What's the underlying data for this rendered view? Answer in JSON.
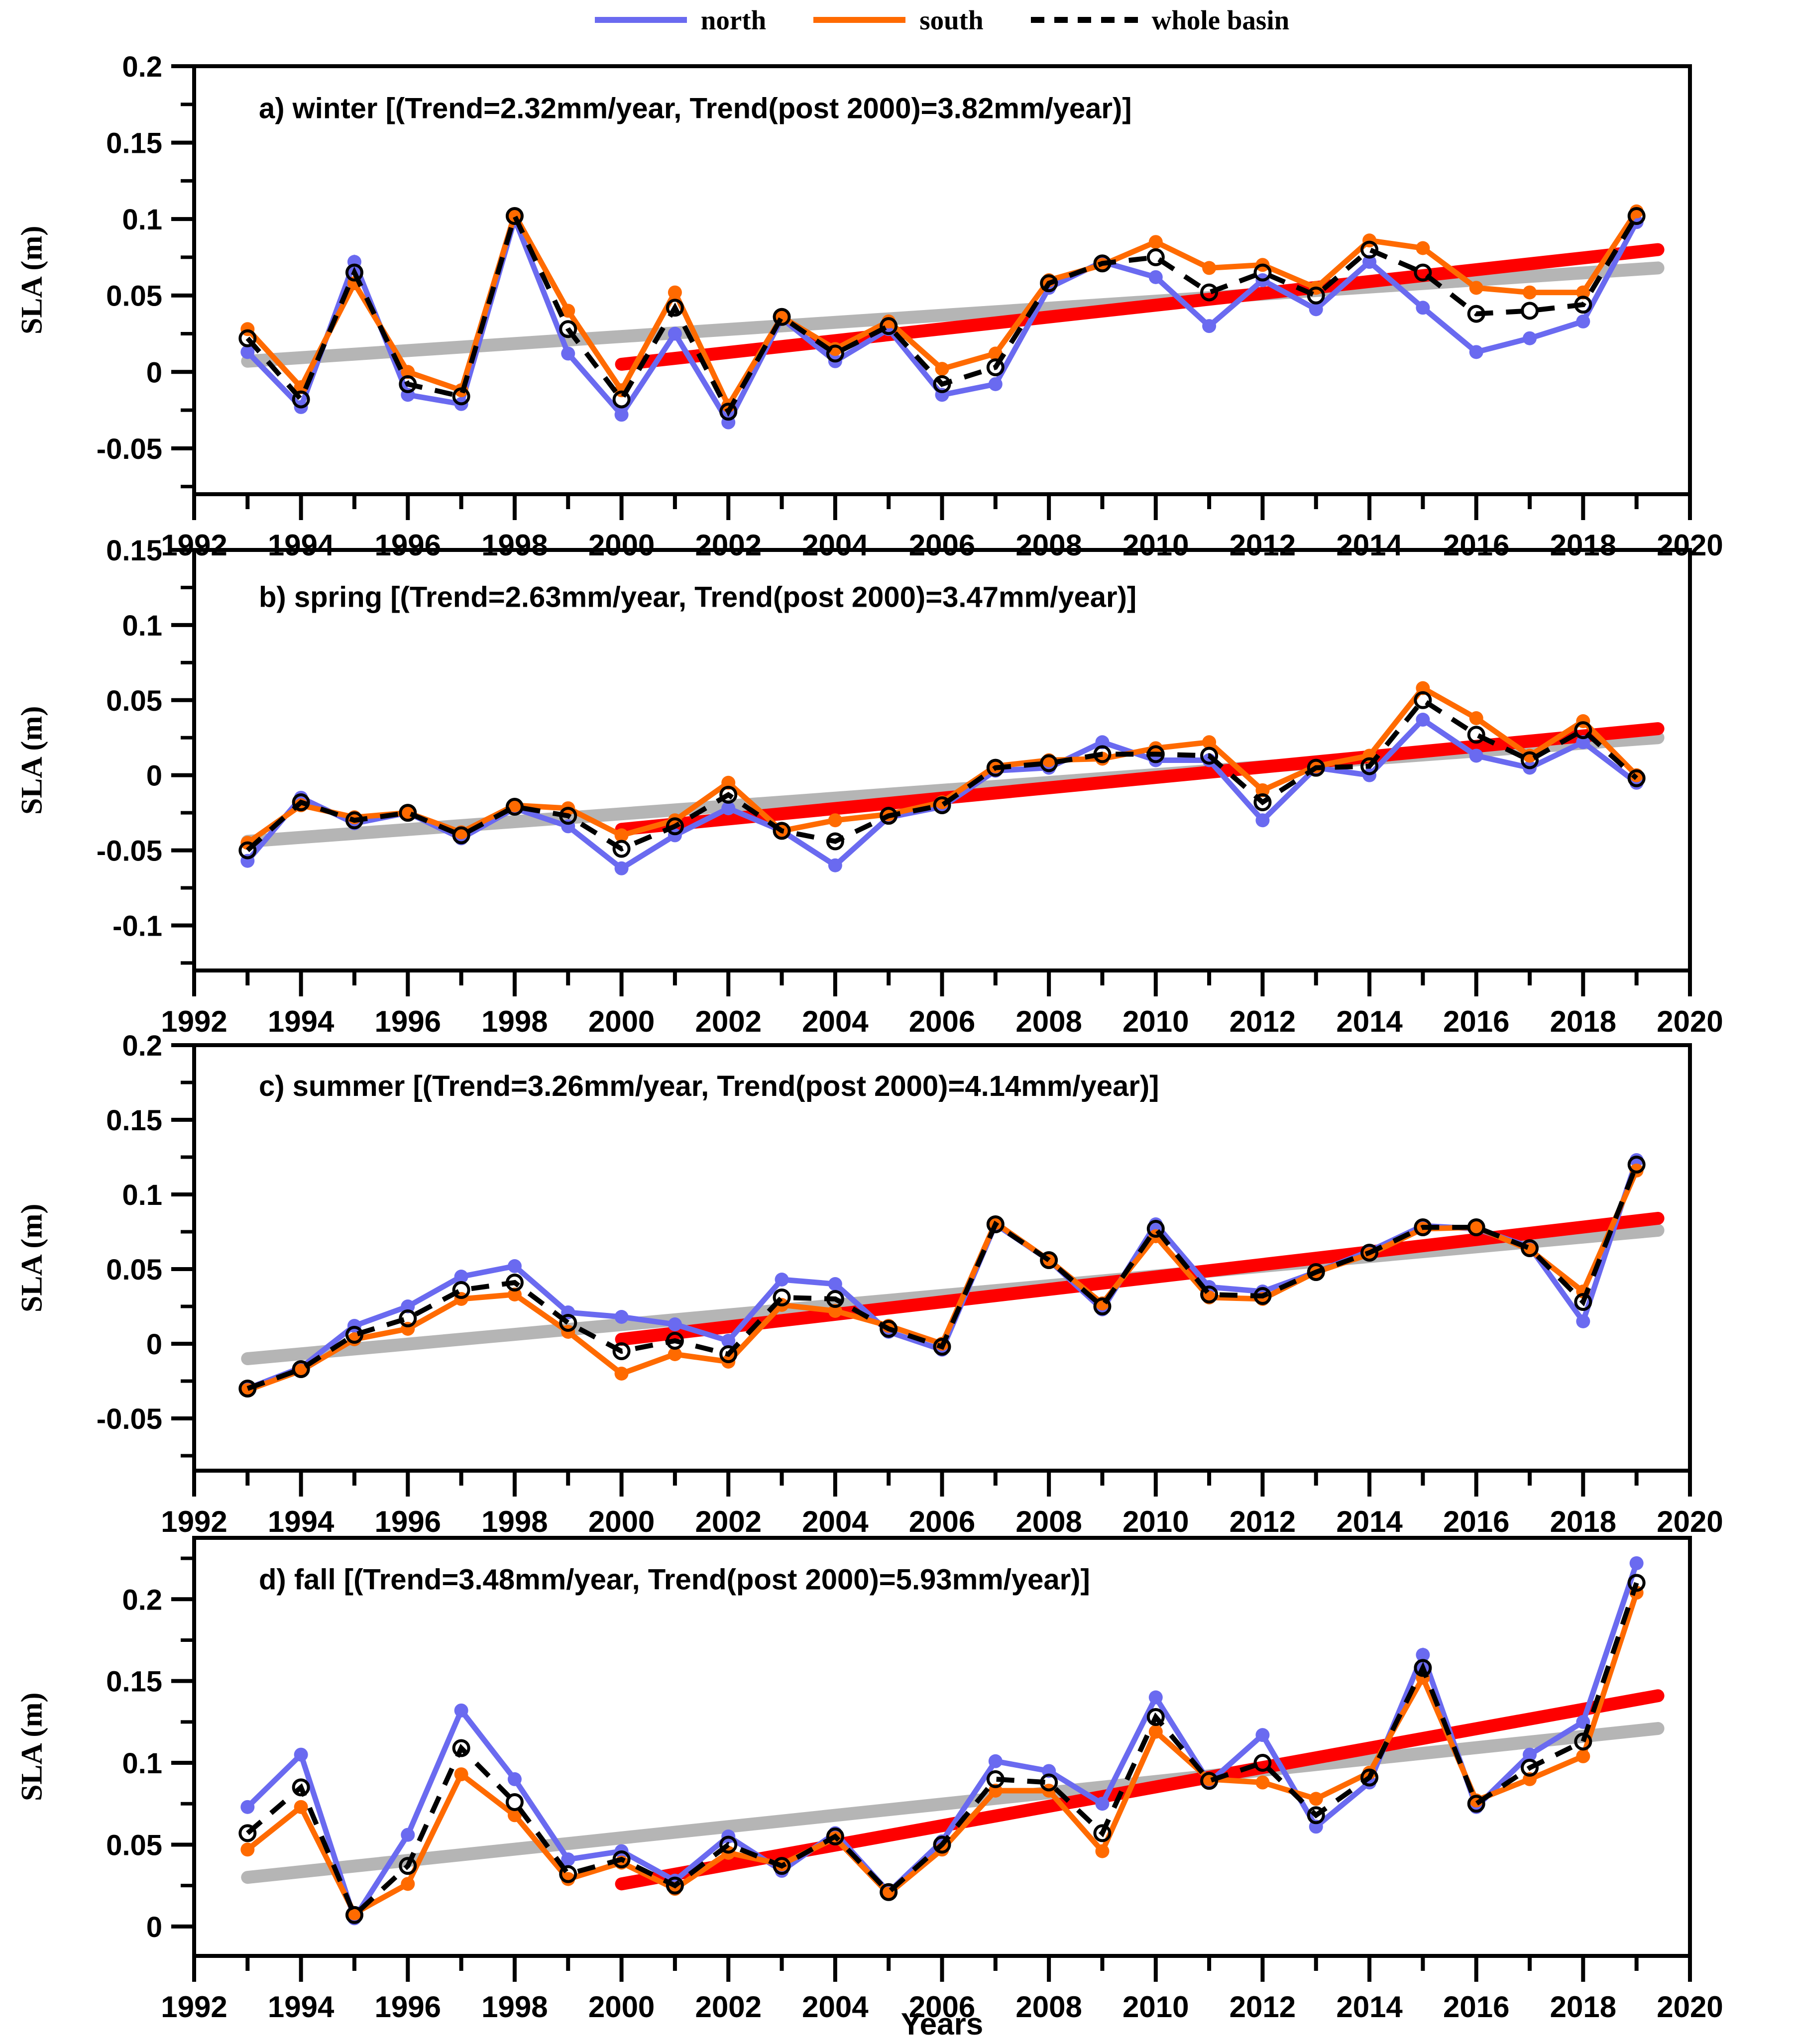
{
  "axes": {
    "x_label": "Years",
    "y_label": "SLA (m)",
    "x_range": [
      1992,
      2020
    ],
    "x_major_tick_step": 2,
    "x_minor_tick_step": 1,
    "y_minor_tick_step": 0.025
  },
  "colors": {
    "north": "#6a6af0",
    "south": "#ff6a00",
    "whole_basin": "#000000",
    "trend_full": "#b5b5b5",
    "trend_post2000": "#fe0000",
    "axis": "#000000"
  },
  "legend": {
    "items": [
      {
        "label": "north",
        "color_key": "north",
        "style": "solid"
      },
      {
        "label": "south",
        "color_key": "south",
        "style": "solid"
      },
      {
        "label": "whole basin",
        "color_key": "whole_basin",
        "style": "dashed"
      }
    ]
  },
  "years": [
    1993,
    1994,
    1995,
    1996,
    1997,
    1998,
    1999,
    2000,
    2001,
    2002,
    2003,
    2004,
    2005,
    2006,
    2007,
    2008,
    2009,
    2010,
    2011,
    2012,
    2013,
    2014,
    2015,
    2016,
    2017,
    2018,
    2019
  ],
  "chart_data": [
    {
      "id": "a",
      "type": "line",
      "season": "winter",
      "title": "a) winter [(Trend=2.32mm/year, Trend(post 2000)=3.82mm/year)]",
      "trend_mm_per_year": 2.32,
      "trend_post2000_mm_per_year": 3.82,
      "ylim": [
        -0.08,
        0.2
      ],
      "ytick_values": [
        -0.05,
        0,
        0.05,
        0.1,
        0.15,
        0.2
      ],
      "ytick_labels": [
        "-0.05",
        "0",
        "0.05",
        "0.1",
        "0.15",
        "0.2"
      ],
      "series": [
        {
          "name": "north",
          "values": [
            0.013,
            -0.023,
            0.072,
            -0.015,
            -0.021,
            0.1,
            0.012,
            -0.028,
            0.025,
            -0.033,
            0.035,
            0.007,
            0.028,
            -0.015,
            -0.008,
            0.055,
            0.072,
            0.062,
            0.03,
            0.06,
            0.041,
            0.072,
            0.042,
            0.013,
            0.022,
            0.033,
            0.098
          ]
        },
        {
          "name": "south",
          "values": [
            0.028,
            -0.01,
            0.058,
            0.0,
            -0.012,
            0.103,
            0.04,
            -0.012,
            0.052,
            -0.022,
            0.036,
            0.015,
            0.033,
            0.002,
            0.012,
            0.06,
            0.07,
            0.085,
            0.068,
            0.07,
            0.055,
            0.086,
            0.081,
            0.055,
            0.052,
            0.052,
            0.105
          ]
        },
        {
          "name": "whole basin",
          "values": [
            0.022,
            -0.018,
            0.065,
            -0.008,
            -0.016,
            0.102,
            0.028,
            -0.018,
            0.042,
            -0.026,
            0.036,
            0.012,
            0.03,
            -0.008,
            0.003,
            0.058,
            0.071,
            0.075,
            0.052,
            0.065,
            0.05,
            0.08,
            0.065,
            0.038,
            0.04,
            0.044,
            0.102
          ]
        }
      ],
      "trend_lines": [
        {
          "name": "full-period",
          "color_key": "trend_full",
          "x": [
            1993,
            2019.4
          ],
          "y": [
            0.007,
            0.068
          ]
        },
        {
          "name": "post-2000",
          "color_key": "trend_post2000",
          "x": [
            2000,
            2019.4
          ],
          "y": [
            0.005,
            0.08
          ]
        }
      ]
    },
    {
      "id": "b",
      "type": "line",
      "season": "spring",
      "title": "b) spring [(Trend=2.63mm/year, Trend(post 2000)=3.47mm/year)]",
      "trend_mm_per_year": 2.63,
      "trend_post2000_mm_per_year": 3.47,
      "ylim": [
        -0.13,
        0.15
      ],
      "ytick_values": [
        -0.1,
        -0.05,
        0,
        0.05,
        0.1,
        0.15
      ],
      "ytick_labels": [
        "-0.1",
        "-0.05",
        "0",
        "0.05",
        "0.1",
        "0.15"
      ],
      "series": [
        {
          "name": "north",
          "values": [
            -0.057,
            -0.015,
            -0.032,
            -0.025,
            -0.042,
            -0.022,
            -0.034,
            -0.062,
            -0.04,
            -0.022,
            -0.037,
            -0.06,
            -0.028,
            -0.021,
            0.003,
            0.005,
            0.022,
            0.01,
            0.01,
            -0.03,
            0.005,
            0.0,
            0.037,
            0.013,
            0.005,
            0.022,
            -0.005
          ]
        },
        {
          "name": "south",
          "values": [
            -0.045,
            -0.02,
            -0.028,
            -0.025,
            -0.038,
            -0.02,
            -0.022,
            -0.04,
            -0.03,
            -0.005,
            -0.037,
            -0.03,
            -0.026,
            -0.018,
            0.006,
            0.01,
            0.011,
            0.018,
            0.022,
            -0.01,
            0.006,
            0.013,
            0.058,
            0.038,
            0.013,
            0.036,
            0.0
          ]
        },
        {
          "name": "whole basin",
          "values": [
            -0.05,
            -0.018,
            -0.03,
            -0.025,
            -0.04,
            -0.021,
            -0.027,
            -0.049,
            -0.034,
            -0.013,
            -0.037,
            -0.044,
            -0.027,
            -0.02,
            0.005,
            0.008,
            0.014,
            0.014,
            0.013,
            -0.018,
            0.005,
            0.006,
            0.05,
            0.027,
            0.01,
            0.03,
            -0.002
          ]
        }
      ],
      "trend_lines": [
        {
          "name": "full-period",
          "color_key": "trend_full",
          "x": [
            1993,
            2019.4
          ],
          "y": [
            -0.044,
            0.025
          ]
        },
        {
          "name": "post-2000",
          "color_key": "trend_post2000",
          "x": [
            2000,
            2019.4
          ],
          "y": [
            -0.036,
            0.031
          ]
        }
      ]
    },
    {
      "id": "c",
      "type": "line",
      "season": "summer",
      "title": "c) summer [(Trend=3.26mm/year, Trend(post 2000)=4.14mm/year)]",
      "trend_mm_per_year": 3.26,
      "trend_post2000_mm_per_year": 4.14,
      "ylim": [
        -0.085,
        0.2
      ],
      "ytick_values": [
        -0.05,
        0,
        0.05,
        0.1,
        0.15,
        0.2
      ],
      "ytick_labels": [
        "-0.05",
        "0",
        "0.05",
        "0.1",
        "0.15",
        "0.2"
      ],
      "series": [
        {
          "name": "north",
          "values": [
            -0.03,
            -0.016,
            0.012,
            0.025,
            0.045,
            0.052,
            0.021,
            0.018,
            0.013,
            0.002,
            0.043,
            0.04,
            0.008,
            -0.004,
            0.08,
            0.056,
            0.023,
            0.08,
            0.038,
            0.035,
            0.048,
            0.062,
            0.079,
            0.077,
            0.065,
            0.015,
            0.123
          ]
        },
        {
          "name": "south",
          "values": [
            -0.031,
            -0.018,
            0.003,
            0.01,
            0.03,
            0.033,
            0.008,
            -0.02,
            -0.007,
            -0.012,
            0.026,
            0.022,
            0.012,
            0.0,
            0.081,
            0.056,
            0.027,
            0.072,
            0.031,
            0.03,
            0.048,
            0.06,
            0.077,
            0.078,
            0.063,
            0.035,
            0.116
          ]
        },
        {
          "name": "whole basin",
          "values": [
            -0.03,
            -0.017,
            0.006,
            0.017,
            0.036,
            0.041,
            0.014,
            -0.005,
            0.002,
            -0.007,
            0.031,
            0.03,
            0.01,
            -0.002,
            0.08,
            0.056,
            0.025,
            0.077,
            0.033,
            0.032,
            0.048,
            0.061,
            0.078,
            0.078,
            0.064,
            0.028,
            0.12
          ]
        }
      ],
      "trend_lines": [
        {
          "name": "full-period",
          "color_key": "trend_full",
          "x": [
            1993,
            2019.4
          ],
          "y": [
            -0.01,
            0.076
          ]
        },
        {
          "name": "post-2000",
          "color_key": "trend_post2000",
          "x": [
            2000,
            2019.4
          ],
          "y": [
            0.003,
            0.084
          ]
        }
      ]
    },
    {
      "id": "d",
      "type": "line",
      "season": "fall",
      "title": "d) fall [(Trend=3.48mm/year, Trend(post 2000)=5.93mm/year)]",
      "trend_mm_per_year": 3.48,
      "trend_post2000_mm_per_year": 5.93,
      "ylim": [
        -0.018,
        0.2375
      ],
      "ytick_values": [
        0,
        0.05,
        0.1,
        0.15,
        0.2
      ],
      "ytick_labels": [
        "0",
        "0.05",
        "0.1",
        "0.15",
        "0.2"
      ],
      "series": [
        {
          "name": "north",
          "values": [
            0.073,
            0.105,
            0.005,
            0.056,
            0.132,
            0.09,
            0.041,
            0.046,
            0.028,
            0.055,
            0.034,
            0.057,
            0.021,
            0.052,
            0.101,
            0.095,
            0.075,
            0.14,
            0.088,
            0.117,
            0.061,
            0.088,
            0.166,
            0.073,
            0.105,
            0.125,
            0.222
          ]
        },
        {
          "name": "south",
          "values": [
            0.047,
            0.073,
            0.008,
            0.026,
            0.093,
            0.068,
            0.029,
            0.039,
            0.023,
            0.045,
            0.038,
            0.054,
            0.02,
            0.047,
            0.083,
            0.083,
            0.046,
            0.119,
            0.09,
            0.088,
            0.078,
            0.094,
            0.152,
            0.077,
            0.09,
            0.104,
            0.204
          ]
        },
        {
          "name": "whole basin",
          "values": [
            0.057,
            0.085,
            0.007,
            0.037,
            0.109,
            0.076,
            0.032,
            0.041,
            0.025,
            0.05,
            0.037,
            0.055,
            0.021,
            0.05,
            0.09,
            0.088,
            0.057,
            0.128,
            0.089,
            0.1,
            0.068,
            0.091,
            0.158,
            0.075,
            0.097,
            0.113,
            0.21
          ]
        }
      ],
      "trend_lines": [
        {
          "name": "full-period",
          "color_key": "trend_full",
          "x": [
            1993,
            2019.4
          ],
          "y": [
            0.03,
            0.121
          ]
        },
        {
          "name": "post-2000",
          "color_key": "trend_post2000",
          "x": [
            2000,
            2019.4
          ],
          "y": [
            0.026,
            0.141
          ]
        }
      ]
    }
  ]
}
